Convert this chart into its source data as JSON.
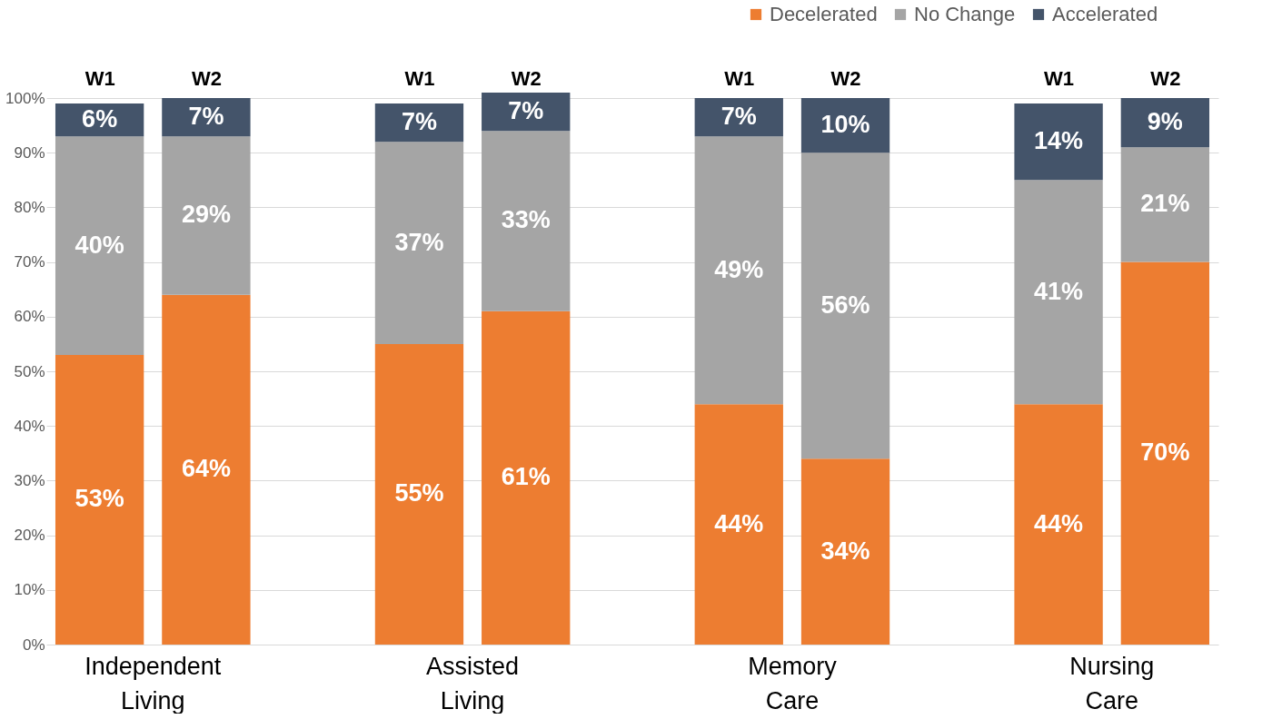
{
  "chart_data": {
    "type": "bar",
    "stacked": true,
    "categories": [
      "W1",
      "W2",
      "W1",
      "W2",
      "W1",
      "W2",
      "W1",
      "W2"
    ],
    "annotations": [
      "Independent Living",
      "Assisted Living",
      "Memory Care",
      "Nursing Care"
    ],
    "series": [
      {
        "name": "Decelerated",
        "color": "#ed7d31",
        "values": [
          53,
          64,
          55,
          61,
          44,
          34,
          44,
          70
        ],
        "value_labels": [
          "53%",
          "64%",
          "55%",
          "61%",
          "44%",
          "34%",
          "44%",
          "70%"
        ]
      },
      {
        "name": "No Change",
        "color": "#a5a5a5",
        "values": [
          40,
          29,
          37,
          33,
          49,
          56,
          41,
          21
        ],
        "value_labels": [
          "40%",
          "29%",
          "37%",
          "33%",
          "49%",
          "56%",
          "41%",
          "21%"
        ]
      },
      {
        "name": "Accelerated",
        "color": "#44546a",
        "values": [
          6,
          7,
          7,
          7,
          7,
          10,
          14,
          9
        ],
        "value_labels": [
          "6%",
          "7%",
          "7%",
          "7%",
          "7%",
          "10%",
          "14%",
          "9%"
        ]
      }
    ],
    "ylim": [
      0,
      101
    ],
    "yticks": [
      {
        "value": 0,
        "label": "0%"
      },
      {
        "value": 10,
        "label": "10%"
      },
      {
        "value": 20,
        "label": "20%"
      },
      {
        "value": 30,
        "label": "30%"
      },
      {
        "value": 40,
        "label": "40%"
      },
      {
        "value": 50,
        "label": "50%"
      },
      {
        "value": 60,
        "label": "60%"
      },
      {
        "value": 70,
        "label": "70%"
      },
      {
        "value": 80,
        "label": "80%"
      },
      {
        "value": 90,
        "label": "90%"
      },
      {
        "value": 100,
        "label": "100%"
      }
    ],
    "grid": "y",
    "legend": "top right"
  }
}
